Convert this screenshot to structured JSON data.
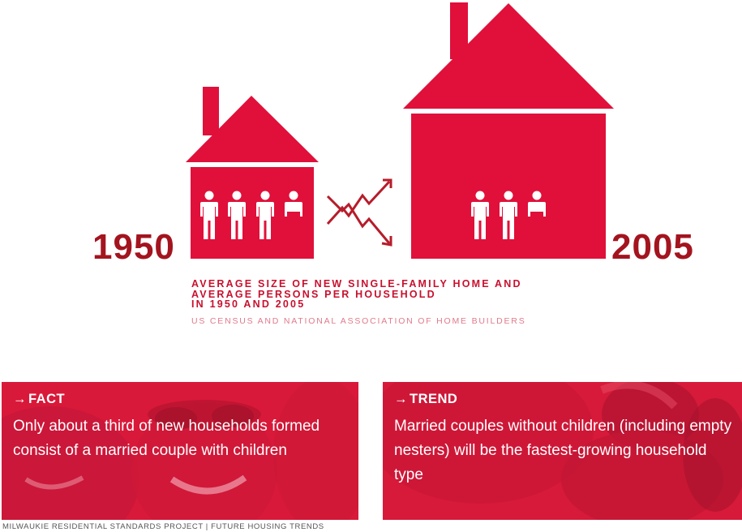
{
  "illustration": {
    "year_1950": "1950",
    "year_2005": "2005",
    "persons_icons_1950": 3.5,
    "persons_icons_2005": 2.5,
    "colors": {
      "house": "#e0103a",
      "year": "#a3141f",
      "arrow": "#b71c2b"
    }
  },
  "caption": {
    "line1": "AVERAGE SIZE OF NEW SINGLE-FAMILY HOME AND",
    "line2": "AVERAGE PERSONS PER HOUSEHOLD",
    "line3": "IN 1950 AND 2005",
    "source": "US CENSUS AND NATIONAL ASSOCIATION OF HOME BUILDERS"
  },
  "fact": {
    "arrow": "→",
    "tag": "FACT",
    "text": "Only about a third of new households formed consist of a married couple with children"
  },
  "trend": {
    "arrow": "→",
    "tag": "TREND",
    "text": "Married couples without children (including empty nesters) will be the fastest-growing household type"
  },
  "footer": "MILWAUKIE RESIDENTIAL STANDARDS PROJECT | FUTURE HOUSING TRENDS"
}
